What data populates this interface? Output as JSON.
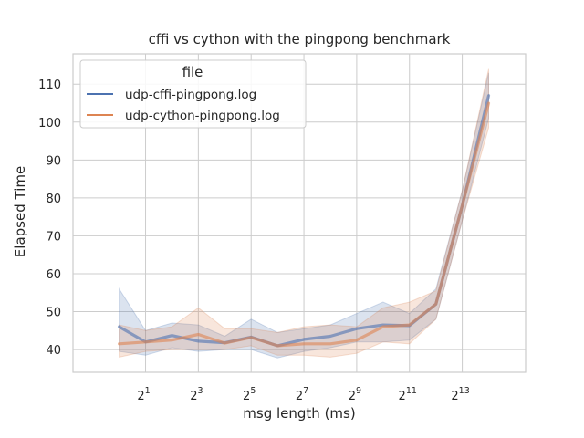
{
  "chart_data": {
    "type": "line",
    "title": "cffi vs cython with the pingpong benchmark",
    "xlabel": "msg length (ms)",
    "ylabel": "Elapsed Time",
    "x_scale": "log2",
    "x": [
      1,
      2,
      4,
      8,
      16,
      32,
      64,
      128,
      256,
      512,
      1024,
      2048,
      4096,
      8192,
      16384
    ],
    "xlim_log2": [
      -1.75,
      15.4
    ],
    "ylim": [
      34,
      118
    ],
    "x_ticks": [
      {
        "base": "2",
        "exp": "1",
        "x": 2
      },
      {
        "base": "2",
        "exp": "3",
        "x": 8
      },
      {
        "base": "2",
        "exp": "5",
        "x": 32
      },
      {
        "base": "2",
        "exp": "7",
        "x": 128
      },
      {
        "base": "2",
        "exp": "9",
        "x": 512
      },
      {
        "base": "2",
        "exp": "11",
        "x": 2048
      },
      {
        "base": "2",
        "exp": "13",
        "x": 8192
      }
    ],
    "y_ticks": [
      "40",
      "50",
      "60",
      "70",
      "80",
      "90",
      "100",
      "110"
    ],
    "grid": true,
    "legend": {
      "title": "file",
      "placement": "top-left"
    },
    "series": [
      {
        "name": "udp-cffi-pingpong.log",
        "color": "#4c72b0",
        "values": [
          46,
          42,
          43.7,
          42.2,
          41.8,
          43.3,
          41,
          42.7,
          43.5,
          45.5,
          46.5,
          46.3,
          52,
          78,
          107
        ],
        "lower": [
          39.5,
          38.5,
          40.5,
          39.5,
          40,
          40,
          37.8,
          39.5,
          40.5,
          42,
          42,
          42.5,
          48,
          74,
          101
        ],
        "upper": [
          56,
          45,
          47,
          46.5,
          43.5,
          48,
          44.5,
          45.5,
          46.5,
          49.5,
          52.5,
          49.5,
          56,
          82,
          113
        ]
      },
      {
        "name": "udp-cython-pingpong.log",
        "color": "#dd8452",
        "values": [
          41.5,
          42,
          42.5,
          44,
          41.7,
          43.2,
          41,
          41.5,
          41.5,
          42.5,
          46,
          46.5,
          52,
          78,
          105
        ],
        "lower": [
          38,
          39.5,
          40,
          40,
          40,
          41,
          38.5,
          38.5,
          38,
          39,
          42,
          41.5,
          48,
          74,
          98.5
        ],
        "upper": [
          46.5,
          45,
          46,
          51,
          45.5,
          45.5,
          44.5,
          46,
          46.5,
          46,
          51,
          52.5,
          55.5,
          82,
          114
        ]
      }
    ]
  }
}
